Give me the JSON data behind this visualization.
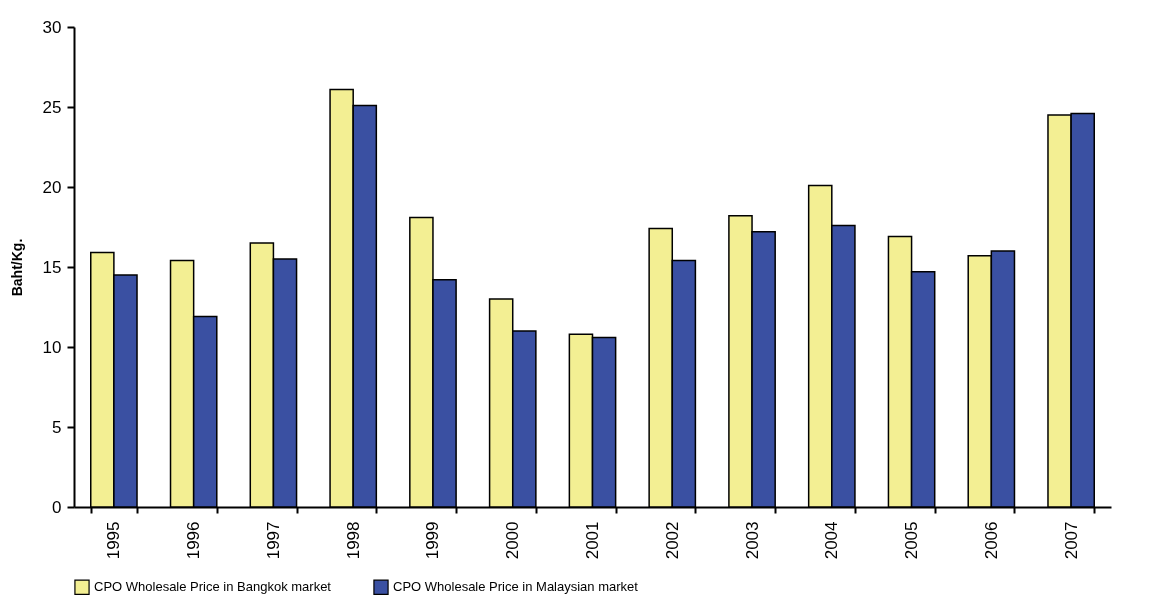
{
  "chart_data": {
    "type": "bar",
    "ylabel": "Baht/Kg.",
    "categories": [
      "1995",
      "1996",
      "1997",
      "1998",
      "1999",
      "2000",
      "2001",
      "2002",
      "2003",
      "2004",
      "2005",
      "2006",
      "2007"
    ],
    "series": [
      {
        "name": "CPO Wholesale Price in Bangkok market",
        "color": "#f3ef93",
        "values": [
          15.9,
          15.4,
          16.5,
          26.1,
          18.1,
          13.0,
          10.8,
          17.4,
          18.2,
          20.1,
          16.9,
          15.7,
          24.5
        ]
      },
      {
        "name": "CPO Wholesale Price in Malaysian market",
        "color": "#3a50a2",
        "values": [
          14.5,
          11.9,
          15.5,
          25.1,
          14.2,
          11.0,
          10.6,
          15.4,
          17.2,
          17.6,
          14.7,
          16.0,
          24.6
        ]
      }
    ],
    "ylim": [
      0,
      30
    ],
    "yticks": [
      0,
      5,
      10,
      15,
      20,
      25,
      30
    ],
    "grid": false,
    "legend": "bottom"
  }
}
